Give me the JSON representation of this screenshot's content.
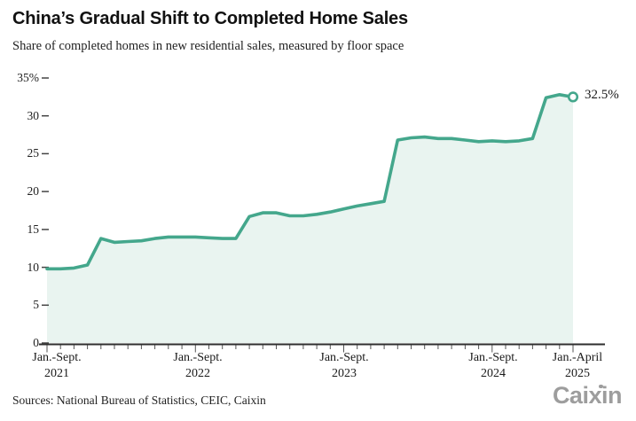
{
  "header": {
    "title": "China’s Gradual Shift to Completed Home Sales",
    "subtitle": "Share of completed homes in new residential sales, measured by floor space"
  },
  "chart_data": {
    "type": "area",
    "title": "China’s Gradual Shift to Completed Home Sales",
    "subtitle": "Share of completed homes in new residential sales, measured by floor space",
    "unit": "%",
    "n_points": 40,
    "x_description": "Cumulative year-to-date periods, monthly, from Jan.-Sept. 2021 to Jan.-April 2025",
    "values": [
      9.8,
      9.8,
      9.9,
      10.3,
      13.8,
      13.3,
      13.4,
      13.5,
      13.8,
      14.0,
      14.0,
      14.0,
      13.9,
      13.8,
      13.8,
      16.7,
      17.2,
      17.2,
      16.8,
      16.8,
      17.0,
      17.3,
      17.7,
      18.1,
      18.4,
      18.7,
      26.8,
      27.1,
      27.2,
      27.0,
      27.0,
      26.8,
      26.6,
      26.7,
      26.6,
      26.7,
      27.0,
      32.4,
      32.8,
      32.5
    ],
    "x_ticks": [
      {
        "index": 0,
        "label": "Jan.-Sept.",
        "year": "2021"
      },
      {
        "index": 11,
        "label": "Jan.-Sept.",
        "year": "2022"
      },
      {
        "index": 22,
        "label": "Jan.-Sept.",
        "year": "2023"
      },
      {
        "index": 33,
        "label": "Jan.-Sept.",
        "year": "2024"
      },
      {
        "index": 39,
        "label": "Jan.-April",
        "year": "2025"
      }
    ],
    "y_ticks": [
      {
        "value": 35,
        "label": "35%"
      },
      {
        "value": 30,
        "label": "30"
      },
      {
        "value": 25,
        "label": "25"
      },
      {
        "value": 20,
        "label": "20"
      },
      {
        "value": 15,
        "label": "15"
      },
      {
        "value": 10,
        "label": "10"
      },
      {
        "value": 5,
        "label": "5"
      },
      {
        "value": 0,
        "label": "0"
      }
    ],
    "ylim": [
      0,
      35
    ],
    "grid": false,
    "legend": false,
    "end_value": 32.5,
    "end_label": "32.5%",
    "colors": {
      "line": "#44a78c",
      "fill": "#e9f4f0",
      "axis": "#2e2e2e",
      "tick": "#555555",
      "text": "#1a1a1a",
      "logo": "#9d9d9d"
    }
  },
  "footer": {
    "sources": "Sources: National Bureau of Statistics, CEIC, Caixin",
    "logo_cai": "Cai",
    "logo_x": "x",
    "logo_in": "in"
  }
}
